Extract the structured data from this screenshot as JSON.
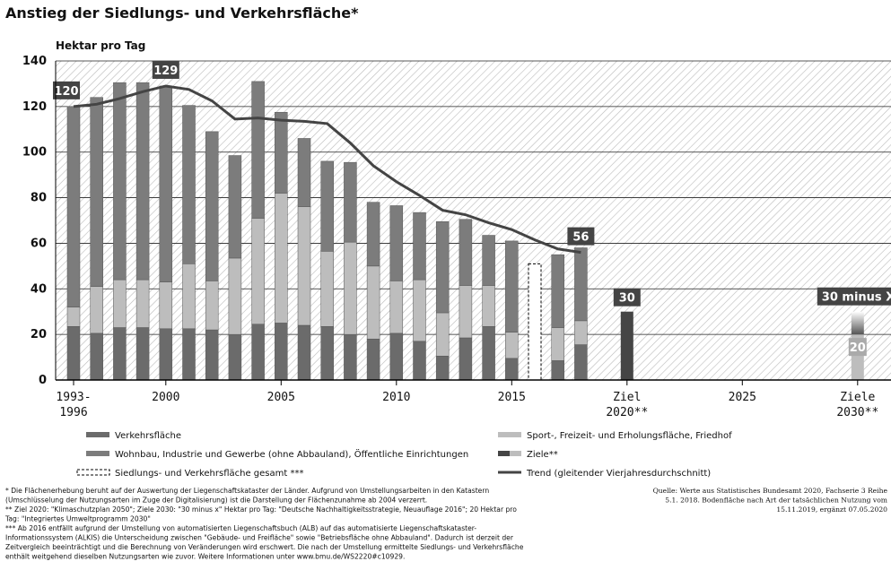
{
  "chart_data": {
    "type": "bar",
    "title": "Anstieg der Siedlungs- und Verkehrsfläche*",
    "ylabel": "Hektar pro Tag",
    "ylim": [
      0,
      140
    ],
    "yticks": [
      0,
      20,
      40,
      60,
      80,
      100,
      120,
      140
    ],
    "grid": true,
    "categories": [
      "1993-\n1996",
      null,
      null,
      null,
      "2000",
      null,
      null,
      null,
      null,
      "2005",
      null,
      null,
      null,
      null,
      "2010",
      null,
      null,
      null,
      null,
      "2015",
      null,
      null,
      null,
      null,
      "Ziel\n2020**",
      null,
      null,
      null,
      null,
      "2025",
      null,
      null,
      null,
      null,
      "Ziele\n2030**"
    ],
    "series": [
      {
        "name": "Verkehrsfläche",
        "color": "#6b6b6b",
        "values": [
          23.5,
          20.5,
          23,
          23,
          22.5,
          22.5,
          22,
          20,
          24.5,
          25,
          24,
          23.5,
          20,
          18,
          20.5,
          17,
          10.5,
          18.5,
          23.5,
          9.5,
          null,
          8.5,
          15.5,
          null,
          null,
          null,
          null,
          null,
          null,
          null,
          null,
          null,
          null,
          null,
          null
        ]
      },
      {
        "name": "Sport-, Freizeit- und Erholungsfläche, Friedhof",
        "color": "#bdbdbd",
        "values": [
          8.5,
          20.5,
          21,
          21,
          20.5,
          28.5,
          21.5,
          33.5,
          46.5,
          57,
          52,
          33,
          40.5,
          32,
          23,
          27,
          19,
          23,
          18,
          11.5,
          null,
          14.5,
          10.5,
          null,
          null,
          null,
          null,
          null,
          null,
          null,
          null,
          null,
          null,
          null,
          null
        ]
      },
      {
        "name": "Wohnbau, Industrie und Gewerbe (ohne Abbauland), Öffentliche Einrichtungen",
        "color": "#7c7c7c",
        "values": [
          88,
          83,
          86.5,
          86.5,
          86,
          69.5,
          65.5,
          45,
          60,
          35.5,
          30,
          39.5,
          35,
          28,
          33,
          29.5,
          40,
          29,
          22,
          40,
          null,
          32,
          32,
          null,
          null,
          null,
          null,
          null,
          null,
          null,
          null,
          null,
          null,
          null,
          null
        ]
      },
      {
        "name": "Ziele**",
        "color": "#454545",
        "values": [
          null,
          null,
          null,
          null,
          null,
          null,
          null,
          null,
          null,
          null,
          null,
          null,
          null,
          null,
          null,
          null,
          null,
          null,
          null,
          null,
          null,
          null,
          null,
          null,
          30,
          null,
          null,
          null,
          null,
          null,
          null,
          null,
          null,
          null,
          20
        ],
        "value_labels": [
          null,
          null,
          null,
          null,
          null,
          null,
          null,
          null,
          null,
          null,
          null,
          null,
          null,
          null,
          null,
          null,
          null,
          null,
          null,
          null,
          null,
          null,
          null,
          null,
          "30",
          null,
          null,
          null,
          null,
          null,
          null,
          null,
          null,
          null,
          "20"
        ]
      },
      {
        "name": "Siedlungs- und Verkehrsfläche gesamt ***",
        "type": "dashed-bar",
        "values": [
          null,
          null,
          null,
          null,
          null,
          null,
          null,
          null,
          null,
          null,
          null,
          null,
          null,
          null,
          null,
          null,
          null,
          null,
          null,
          null,
          51,
          null,
          null,
          null,
          null,
          null,
          null,
          null,
          null,
          null,
          null,
          null,
          null,
          null,
          null
        ]
      },
      {
        "name": "Trend (gleitender Vierjahresdurchschnitt)",
        "type": "line",
        "color": "#444444",
        "values": [
          120,
          121,
          123.5,
          126.5,
          129,
          127.5,
          122.5,
          114.5,
          115,
          114,
          113.5,
          112.5,
          104,
          94,
          87,
          81,
          74.5,
          72.5,
          69,
          66,
          61.5,
          57.5,
          56,
          null,
          null,
          null,
          null,
          null,
          null,
          null,
          null,
          null,
          null,
          null,
          null
        ],
        "value_labels": [
          "120",
          null,
          null,
          null,
          "129",
          null,
          null,
          null,
          null,
          null,
          null,
          null,
          null,
          null,
          null,
          null,
          null,
          null,
          null,
          null,
          null,
          null,
          "56",
          null,
          null,
          null,
          null,
          null,
          null,
          null,
          null,
          null,
          null,
          null,
          null
        ]
      }
    ],
    "annotation": {
      "text": "30 minus X",
      "value": 30
    },
    "notes": [
      "* Die Flächenerhebung beruht auf der Auswertung der Liegenschaftskataster der Länder. Aufgrund von Umstellungsarbeiten in den Katastern",
      "(Umschlüsselung der Nutzungsarten im Zuge der Digitalisierung) ist die Darstellung der Flächenzunahme ab 2004 verzerrt.",
      "** Ziel 2020: \"Klimaschutzplan 2050\"; Ziele 2030: \"30 minus x\" Hektar pro Tag: \"Deutsche Nachhaltigkeitsstrategie, Neuauflage 2016\"; 20 Hektar pro",
      "Tag: \"Integriertes Umweltprogramm 2030\"",
      "*** Ab 2016 entfällt aufgrund der Umstellung von automatisierten Liegenschaftsbuch (ALB) auf das automatisierte Liegenschaftskataster-",
      "Informationssystem (ALKIS) die Unterscheidung zwischen \"Gebäude- und Freifläche\" sowie \"Betriebsfläche ohne Abbauland\". Dadurch ist derzeit der",
      "Zeitvergleich beeinträchtigt und die Berechnung von Veränderungen wird erschwert. Die nach der Umstellung ermittelte Siedlungs- und Verkehrsfläche",
      "enthält weitgehend dieselben Nutzungsarten wie zuvor. Weitere Informationen unter www.bmu.de/WS2220#c10929."
    ],
    "source": [
      "Quelle: Werte aus Statistisches Bundesamt 2020, Fachserie 3 Reihe",
      "5.1. 2018. Bodenfläche nach Art der tatsächlichen Nutzung vom",
      "15.11.2019, ergänzt 07.05.2020"
    ]
  }
}
